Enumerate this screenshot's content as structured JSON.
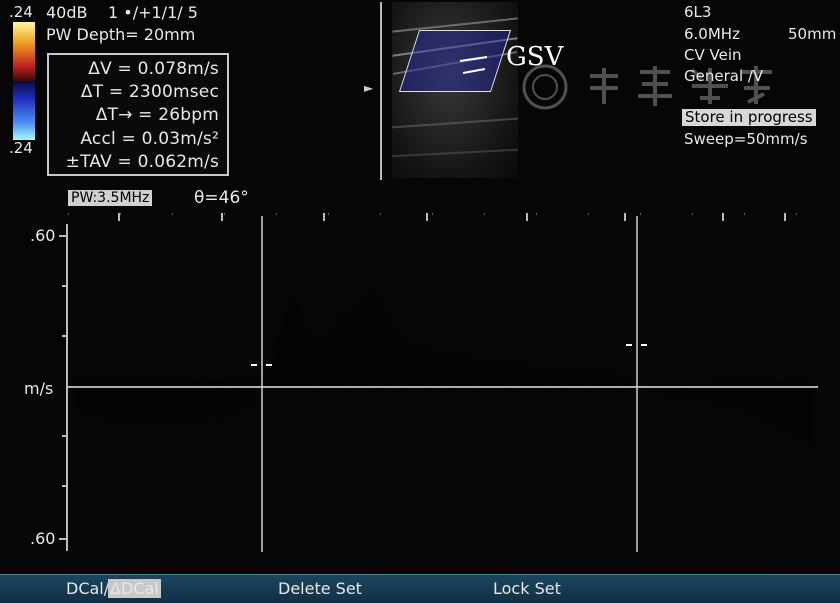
{
  "top_left": {
    "scale_top": ".24",
    "scale_bottom": ".24",
    "gain": "40dB",
    "settings": "1 •/+1/1/ 5",
    "pw_depth": "PW Depth= 20mm"
  },
  "measurements": {
    "delta_v": "ΔV = 0.078m/s",
    "delta_t": "ΔT = 2300msec",
    "delta_t_rate": "ΔT→ = 26bpm",
    "accel": "Accl = 0.03m/s²",
    "tav": "±TAV = 0.062m/s"
  },
  "image_annotation": "GSV",
  "probe_info": {
    "probe": "6L3",
    "frequency": "6.0MHz",
    "depth": "50mm",
    "preset": "CV Vein",
    "exam": "General /V",
    "status": "Store in progress",
    "sweep": "Sweep=50mm/s"
  },
  "doppler": {
    "pw_label": "PW:3.5MHz",
    "angle": "θ=46°",
    "scale_top": ".60",
    "unit": "m/s",
    "scale_bottom": ".60"
  },
  "menu": {
    "dcal_1": "DCal/",
    "dcal_2": "ΔDCal",
    "delete_set": "Delete Set",
    "lock_set": "Lock Set"
  },
  "colors": {
    "spectrum_core": "#fff2c0",
    "spectrum_mid": "#f08a40",
    "spectrum_edge": "#9a1a10",
    "menu_bar": "#163c55"
  }
}
